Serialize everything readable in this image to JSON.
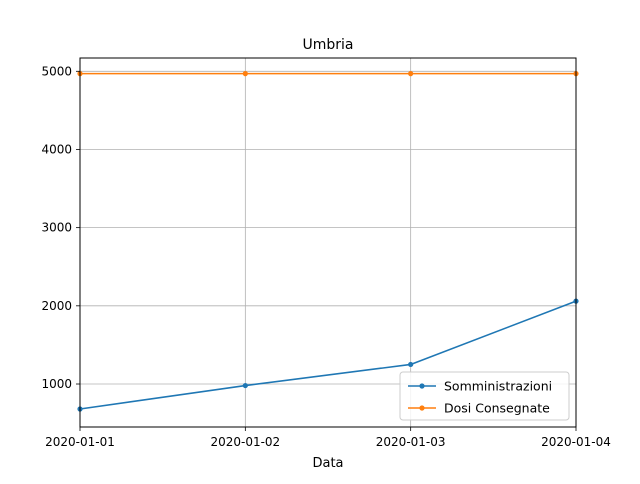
{
  "chart_data": {
    "type": "line",
    "title": "Umbria",
    "xlabel": "Data",
    "ylabel": "",
    "x": [
      "2020-01-01",
      "2020-01-02",
      "2020-01-03",
      "2020-01-04"
    ],
    "xlim": [
      "2020-01-01",
      "2020-01-04"
    ],
    "ylim": [
      450,
      5170
    ],
    "yticks": [
      1000,
      2000,
      3000,
      4000,
      5000
    ],
    "grid": true,
    "legend_position": "lower-right",
    "series": [
      {
        "name": "Somministrazioni",
        "color": "#1f77b4",
        "values": [
          680,
          980,
          1250,
          2060
        ]
      },
      {
        "name": "Dosi Consegnate",
        "color": "#ff7f0e",
        "values": [
          4970,
          4970,
          4970,
          4970
        ]
      }
    ]
  }
}
